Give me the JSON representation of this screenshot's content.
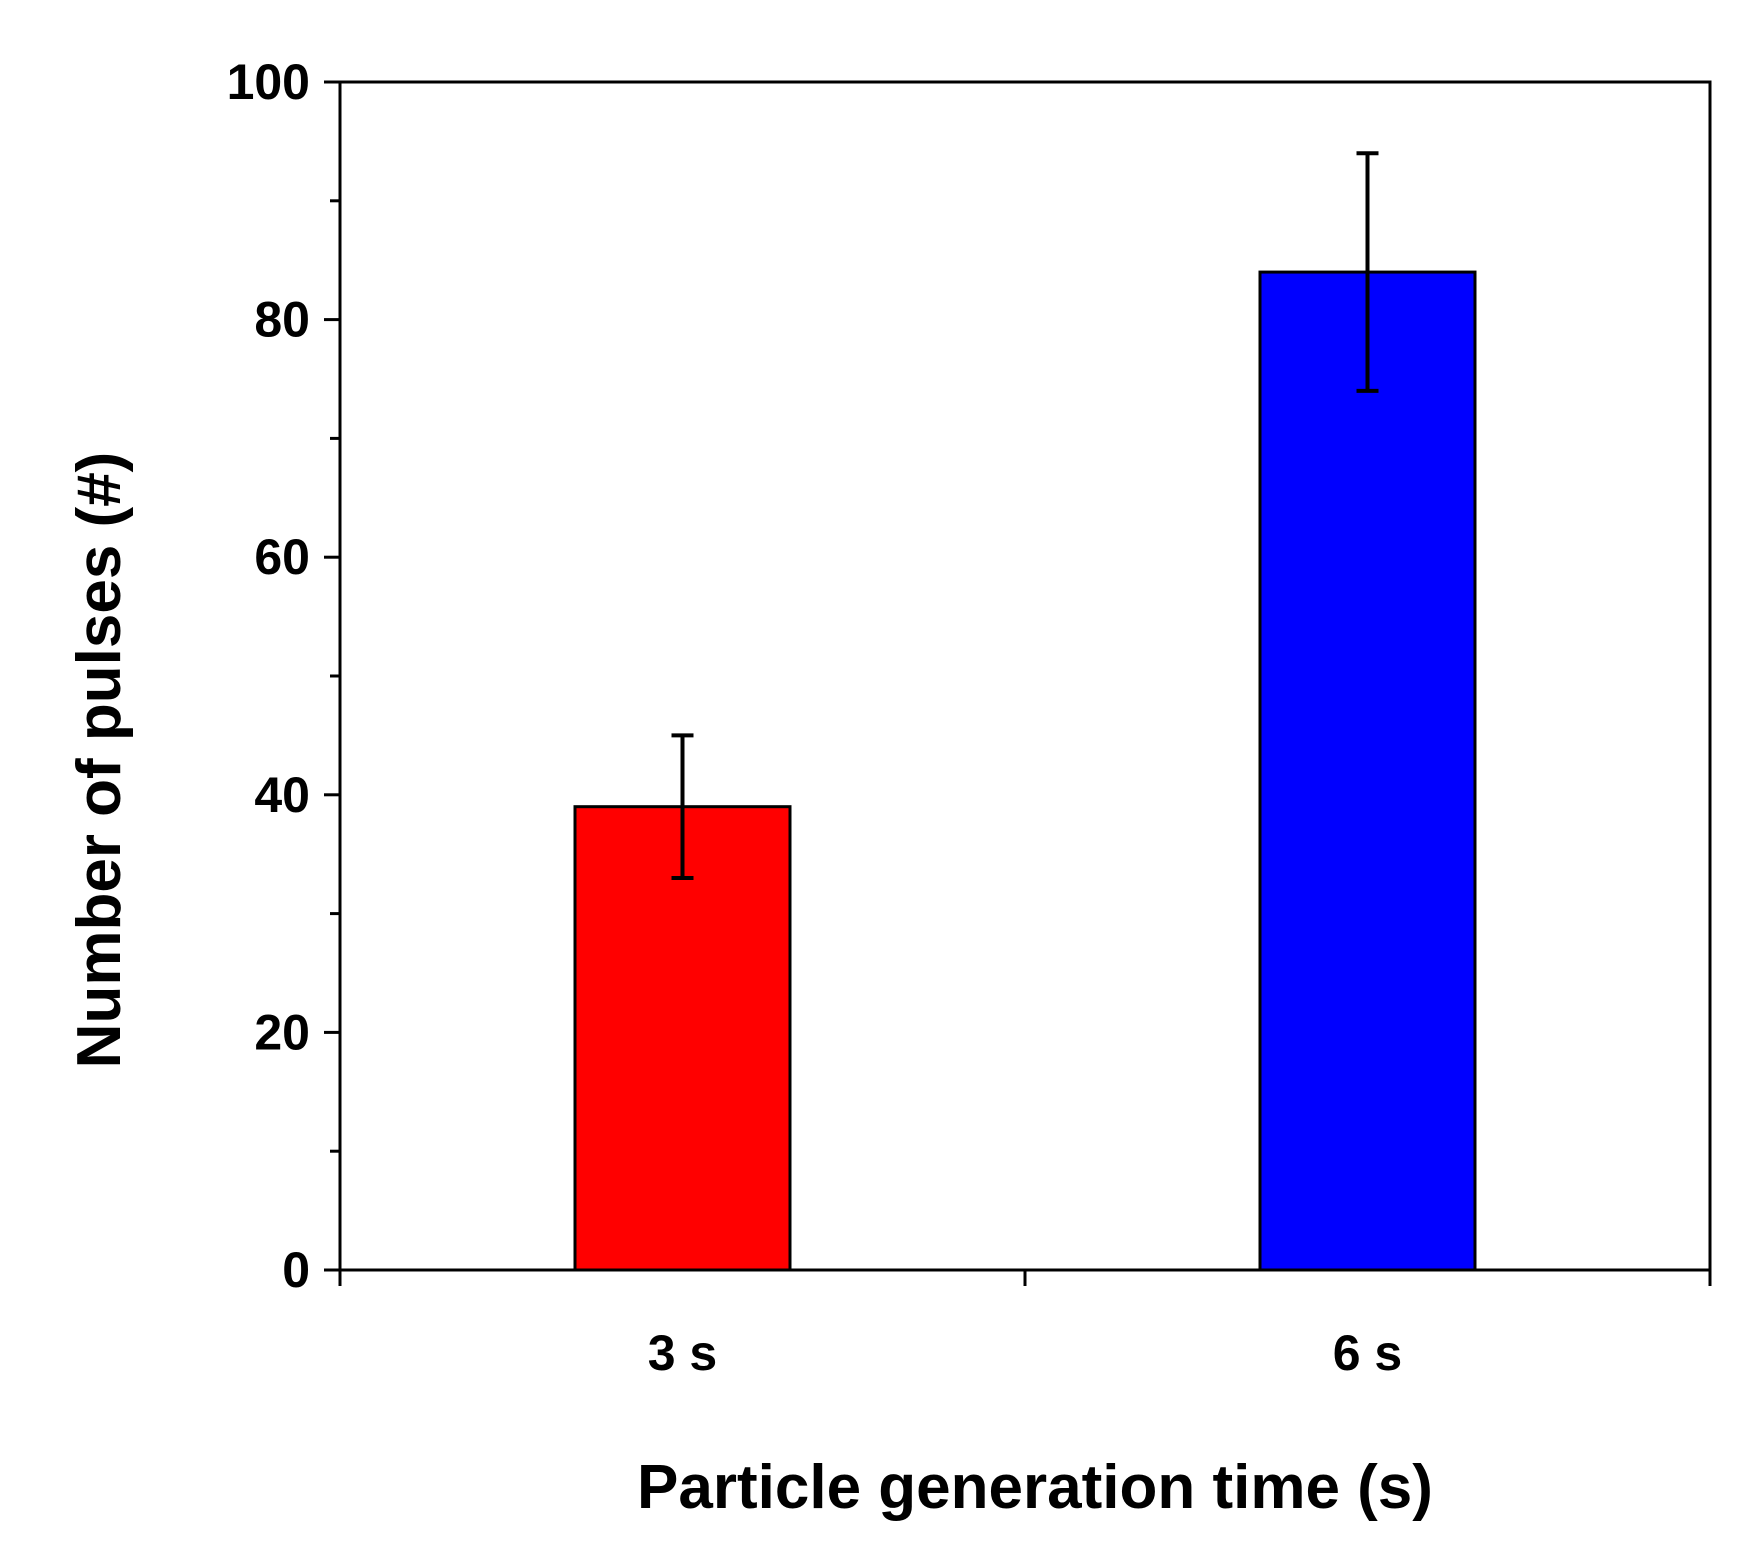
{
  "chart_data": {
    "type": "bar",
    "title": "",
    "xlabel": "Particle generation time (s)",
    "ylabel": "Number of pulses (#)",
    "categories": [
      "3 s",
      "6 s"
    ],
    "values": [
      39,
      84
    ],
    "errors": [
      6,
      10
    ],
    "bar_colors": [
      "#ff0000",
      "#0000ff"
    ],
    "ylim": [
      0,
      100
    ],
    "yticks": [
      0,
      20,
      40,
      60,
      80,
      100
    ],
    "ytick_labels": [
      "0",
      "20",
      "40",
      "60",
      "80",
      "100"
    ],
    "minor_ytick_step": 10,
    "grid": false,
    "legend": "none"
  }
}
